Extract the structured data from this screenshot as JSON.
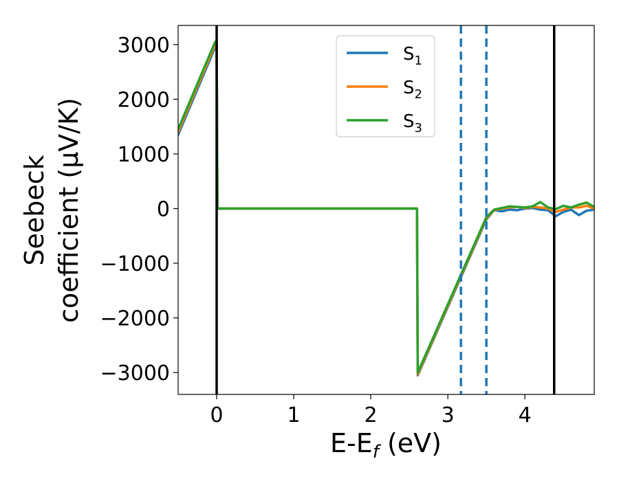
{
  "chart_data": {
    "type": "line",
    "xlabel": {
      "main": "E-E",
      "sub": "f",
      "unit": " (eV)"
    },
    "ylabel": {
      "line1": "Seebeck",
      "line2": "coefficient  (μV/K)"
    },
    "xlim": [
      -0.5,
      4.9
    ],
    "ylim": [
      -3400,
      3350
    ],
    "x_ticks": [
      0,
      1,
      2,
      3,
      4
    ],
    "y_ticks": [
      -3000,
      -2000,
      -1000,
      0,
      1000,
      2000,
      3000
    ],
    "y_tick_labels": [
      "−3000",
      "−2000",
      "−1000",
      "0",
      "1000",
      "2000",
      "3000"
    ],
    "grid": false,
    "legend_position": "top-center",
    "vlines": [
      {
        "x": 0,
        "style": "solid",
        "color": "#000000"
      },
      {
        "x": 4.38,
        "style": "solid",
        "color": "#000000"
      },
      {
        "x": 3.17,
        "style": "dashed",
        "color": "#1f77b4"
      },
      {
        "x": 3.5,
        "style": "dashed",
        "color": "#1f77b4"
      }
    ],
    "series": [
      {
        "name": "S",
        "sub": "1",
        "color": "#1f77b4",
        "x": [
          -0.5,
          -0.02,
          0,
          0.01,
          2.6,
          2.61,
          3.5,
          3.6,
          3.7,
          3.8,
          3.9,
          4.0,
          4.1,
          4.2,
          4.3,
          4.4,
          4.5,
          4.6,
          4.7,
          4.8,
          4.9
        ],
        "y": [
          1350,
          2950,
          2950,
          0,
          0,
          -3050,
          -200,
          -30,
          -50,
          -20,
          -30,
          0,
          10,
          -20,
          -30,
          -140,
          -60,
          -20,
          -120,
          -40,
          -20
        ]
      },
      {
        "name": "S",
        "sub": "2",
        "color": "#ff7f0e",
        "x": [
          -0.5,
          -0.02,
          0,
          0.01,
          2.6,
          2.61,
          3.5,
          3.6,
          3.7,
          3.8,
          3.9,
          4.0,
          4.1,
          4.2,
          4.3,
          4.4,
          4.5,
          4.6,
          4.7,
          4.8,
          4.9
        ],
        "y": [
          1400,
          3000,
          3000,
          0,
          0,
          -3030,
          -180,
          -30,
          0,
          20,
          30,
          10,
          30,
          20,
          0,
          -60,
          -20,
          20,
          20,
          50,
          0
        ]
      },
      {
        "name": "S",
        "sub": "3",
        "color": "#2ca02c",
        "x": [
          -0.5,
          -0.02,
          0,
          0.01,
          2.6,
          2.61,
          3.5,
          3.6,
          3.7,
          3.8,
          3.9,
          4.0,
          4.1,
          4.2,
          4.3,
          4.4,
          4.5,
          4.6,
          4.7,
          4.8,
          4.9
        ],
        "y": [
          1450,
          3050,
          3050,
          0,
          0,
          -3000,
          -160,
          -20,
          10,
          40,
          30,
          20,
          40,
          120,
          20,
          -10,
          50,
          20,
          70,
          110,
          30
        ]
      }
    ]
  }
}
